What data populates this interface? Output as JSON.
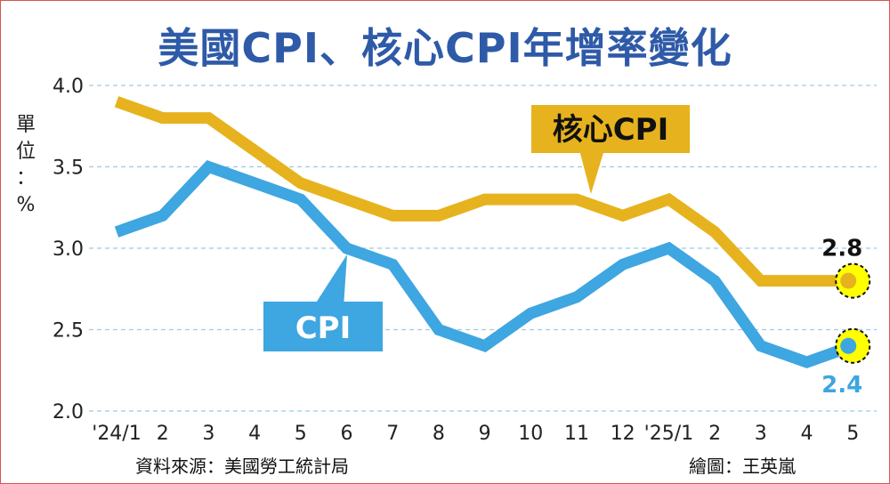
{
  "chart_data": {
    "type": "line",
    "title": "美國CPI、核心CPI年增率變化",
    "ylabel": "單位：%",
    "ylim": [
      2.0,
      4.0
    ],
    "yticks": [
      "2.0",
      "2.5",
      "3.0",
      "3.5",
      "4.0"
    ],
    "categories": [
      "'24/1",
      "2",
      "3",
      "4",
      "5",
      "6",
      "7",
      "8",
      "9",
      "10",
      "11",
      "12",
      "'25/1",
      "2",
      "3",
      "4",
      "5"
    ],
    "grid": true,
    "series": [
      {
        "name": "核心CPI",
        "color": "#e6b31e",
        "values": [
          3.9,
          3.8,
          3.8,
          3.6,
          3.4,
          3.3,
          3.2,
          3.2,
          3.3,
          3.3,
          3.3,
          3.2,
          3.3,
          3.1,
          2.8,
          2.8,
          2.8
        ],
        "end_label": "2.8"
      },
      {
        "name": "CPI",
        "color": "#3ea6e0",
        "values": [
          3.1,
          3.2,
          3.5,
          3.4,
          3.3,
          3.0,
          2.9,
          2.5,
          2.4,
          2.6,
          2.7,
          2.9,
          3.0,
          2.8,
          2.4,
          2.3,
          2.4
        ],
        "end_label": "2.4"
      }
    ],
    "source": "資料來源：美國勞工統計局",
    "credit": "繪圖：王英嵐"
  },
  "colors": {
    "title": "#2e5aa8",
    "grid": "#9ec9e6",
    "callout_core_bg": "#e6b31e",
    "callout_cpi_bg": "#3ea6e0",
    "end_marker_fill": "#ffff00"
  }
}
